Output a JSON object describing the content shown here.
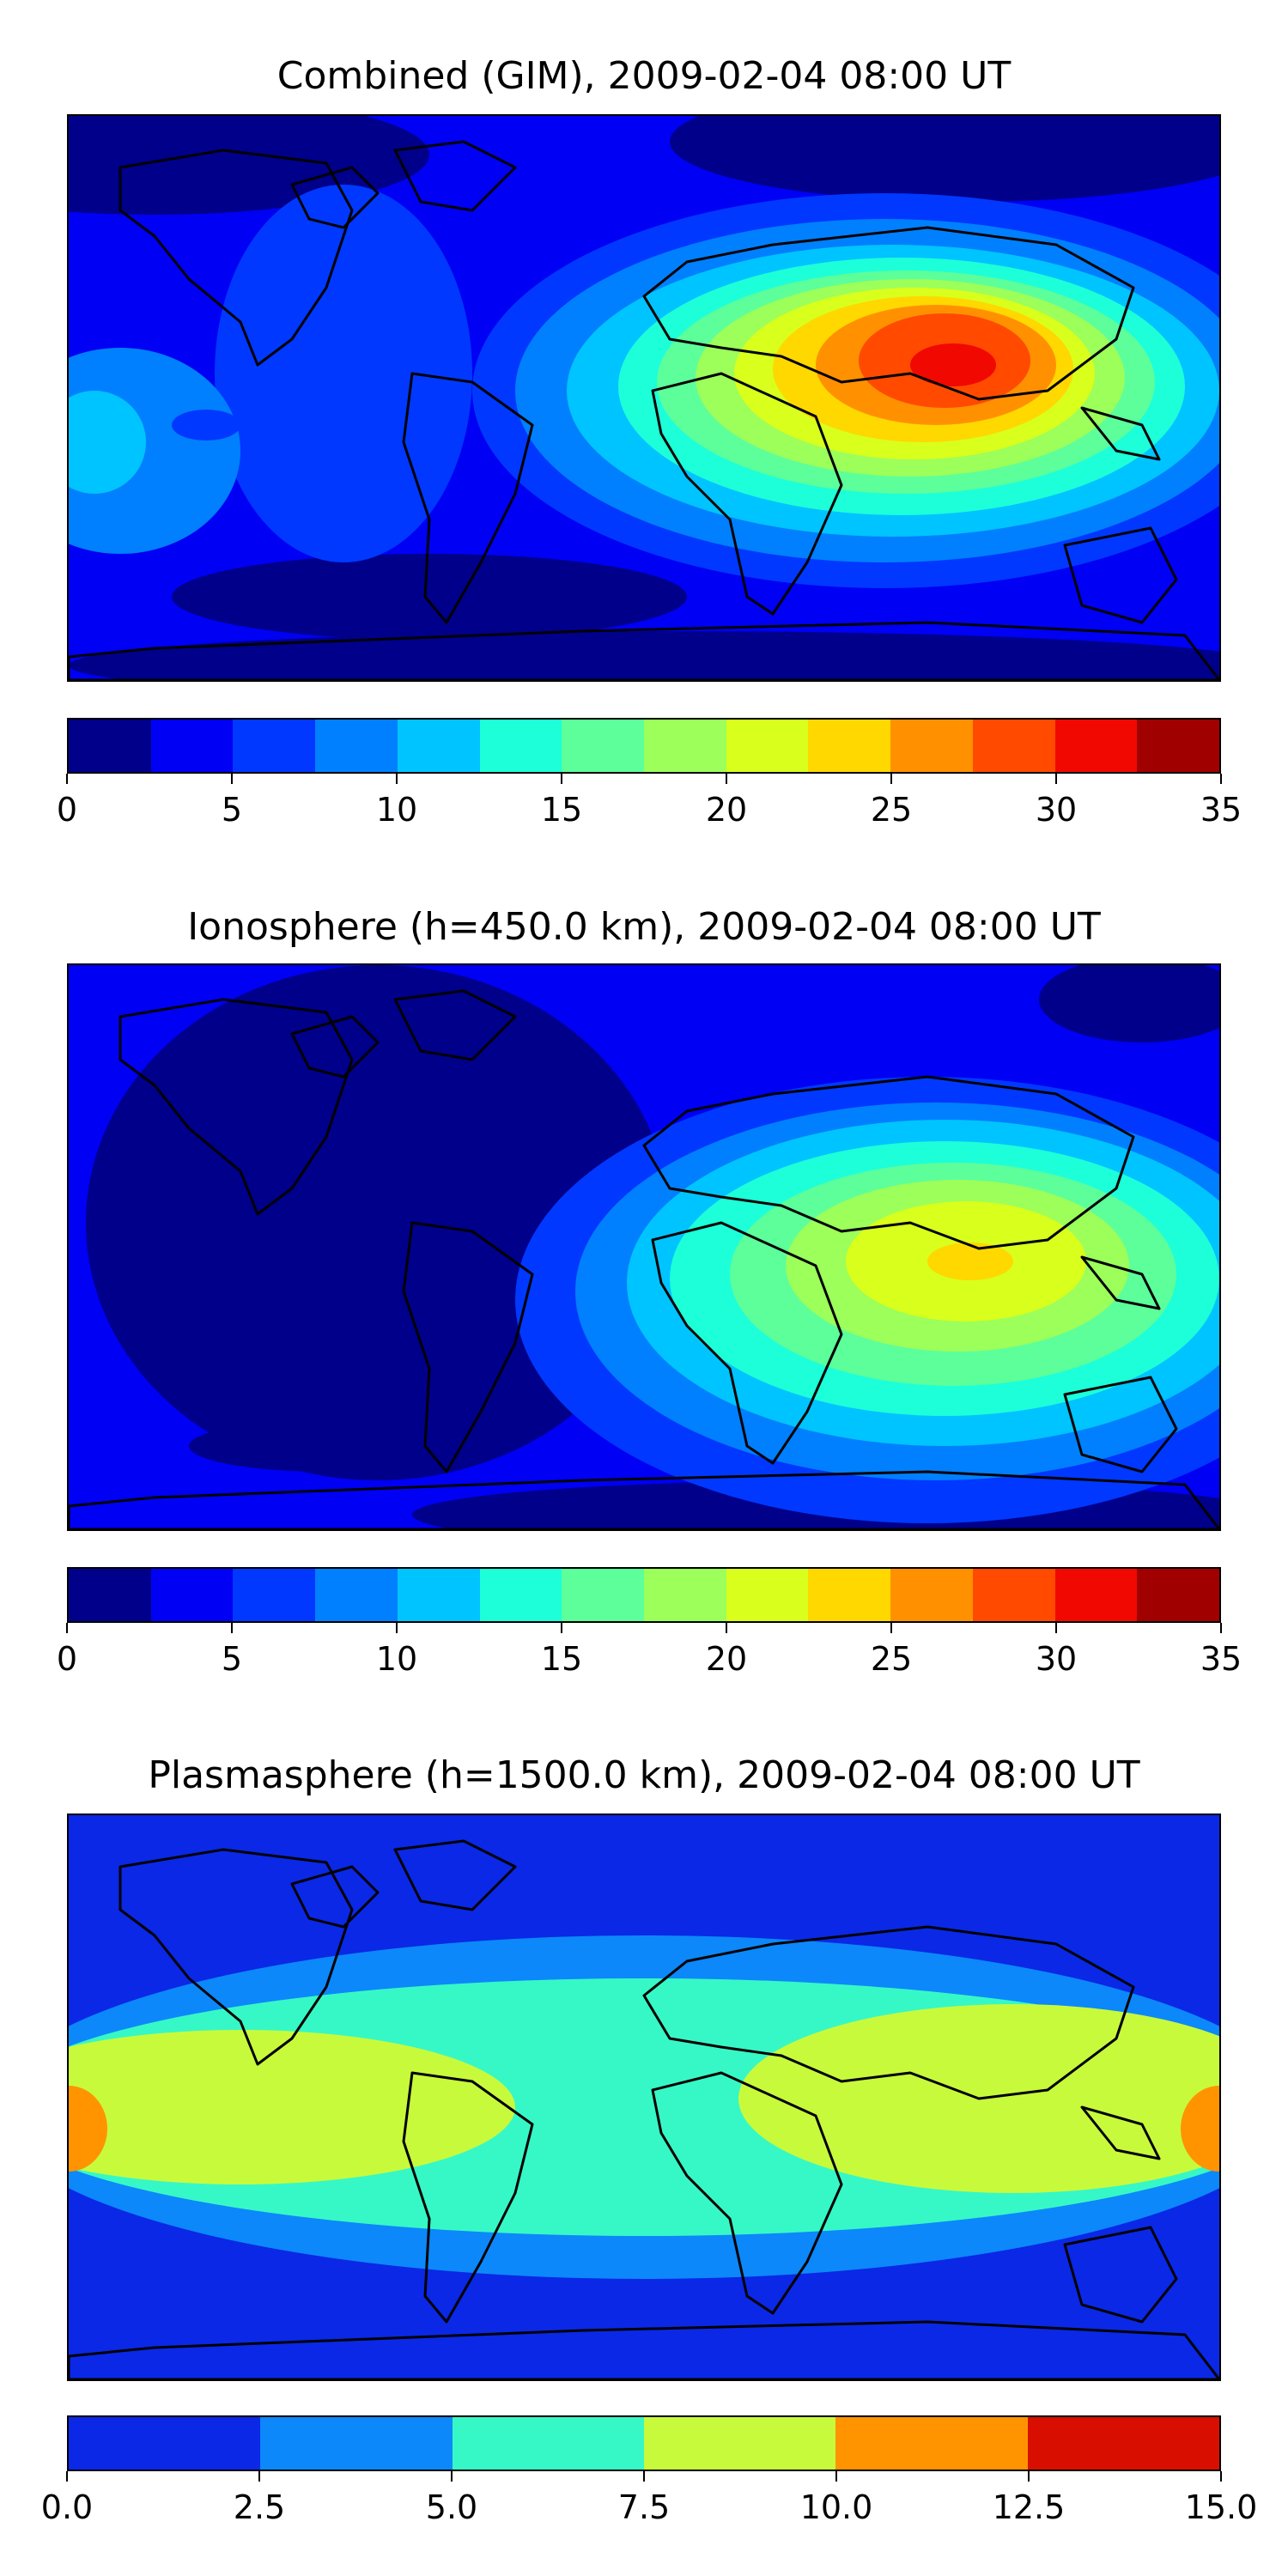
{
  "chart_data": [
    {
      "type": "heatmap",
      "title": "Combined (GIM), 2009-02-04 08:00 UT",
      "xlabel": "",
      "ylabel": "",
      "colorbar": {
        "ticks": [
          "0",
          "5",
          "10",
          "15",
          "20",
          "25",
          "30",
          "35"
        ],
        "range": [
          0,
          35
        ],
        "levels": [
          0,
          2.5,
          5,
          7.5,
          10,
          12.5,
          15,
          17.5,
          20,
          22.5,
          25,
          27.5,
          30,
          32.5,
          35
        ]
      },
      "features": [
        {
          "region": "background",
          "level": 1
        },
        {
          "region": "north polar",
          "level": 0
        },
        {
          "region": "south polar",
          "level": 0
        },
        {
          "region": "Indian Ocean / South Asia peak",
          "level": 12
        },
        {
          "region": "Pacific equatorial band",
          "level": 4
        }
      ]
    },
    {
      "type": "heatmap",
      "title": "Ionosphere  (h=450.0 km), 2009-02-04 08:00 UT",
      "xlabel": "",
      "ylabel": "",
      "colorbar": {
        "ticks": [
          "0",
          "5",
          "10",
          "15",
          "20",
          "25",
          "30",
          "35"
        ],
        "range": [
          0,
          35
        ],
        "levels": [
          0,
          2.5,
          5,
          7.5,
          10,
          12.5,
          15,
          17.5,
          20,
          22.5,
          25,
          27.5,
          30,
          32.5,
          35
        ]
      },
      "features": [
        {
          "region": "background",
          "level": 1
        },
        {
          "region": "Americas night sector",
          "level": 0
        },
        {
          "region": "Indian Ocean / South Asia peak",
          "level": 8
        }
      ]
    },
    {
      "type": "heatmap",
      "title": "Plasmasphere (h=1500.0 km), 2009-02-04 08:00 UT",
      "xlabel": "",
      "ylabel": "",
      "colorbar": {
        "ticks": [
          "0.0",
          "2.5",
          "5.0",
          "7.5",
          "10.0",
          "12.5",
          "15.0"
        ],
        "range": [
          0,
          15
        ],
        "levels": [
          0,
          2.5,
          5,
          7.5,
          10,
          12.5,
          15
        ]
      },
      "features": [
        {
          "region": "high latitudes",
          "level": 0
        },
        {
          "region": "equatorial band",
          "level": 2
        },
        {
          "region": "Pacific / Asia maxima",
          "level": 3
        },
        {
          "region": "date line peak",
          "level": 4
        }
      ]
    }
  ],
  "palettes": {
    "jet14": [
      "#00008b",
      "#0000f4",
      "#0038ff",
      "#0080ff",
      "#00c4ff",
      "#1cffd9",
      "#5cff9a",
      "#9cff5a",
      "#d9ff1c",
      "#ffd800",
      "#ff9100",
      "#ff4a00",
      "#f10800",
      "#a10000"
    ],
    "jet6": [
      "#0a28e6",
      "#0c88fa",
      "#36f8c6",
      "#c8fa3c",
      "#ff9400",
      "#d80f00"
    ]
  }
}
